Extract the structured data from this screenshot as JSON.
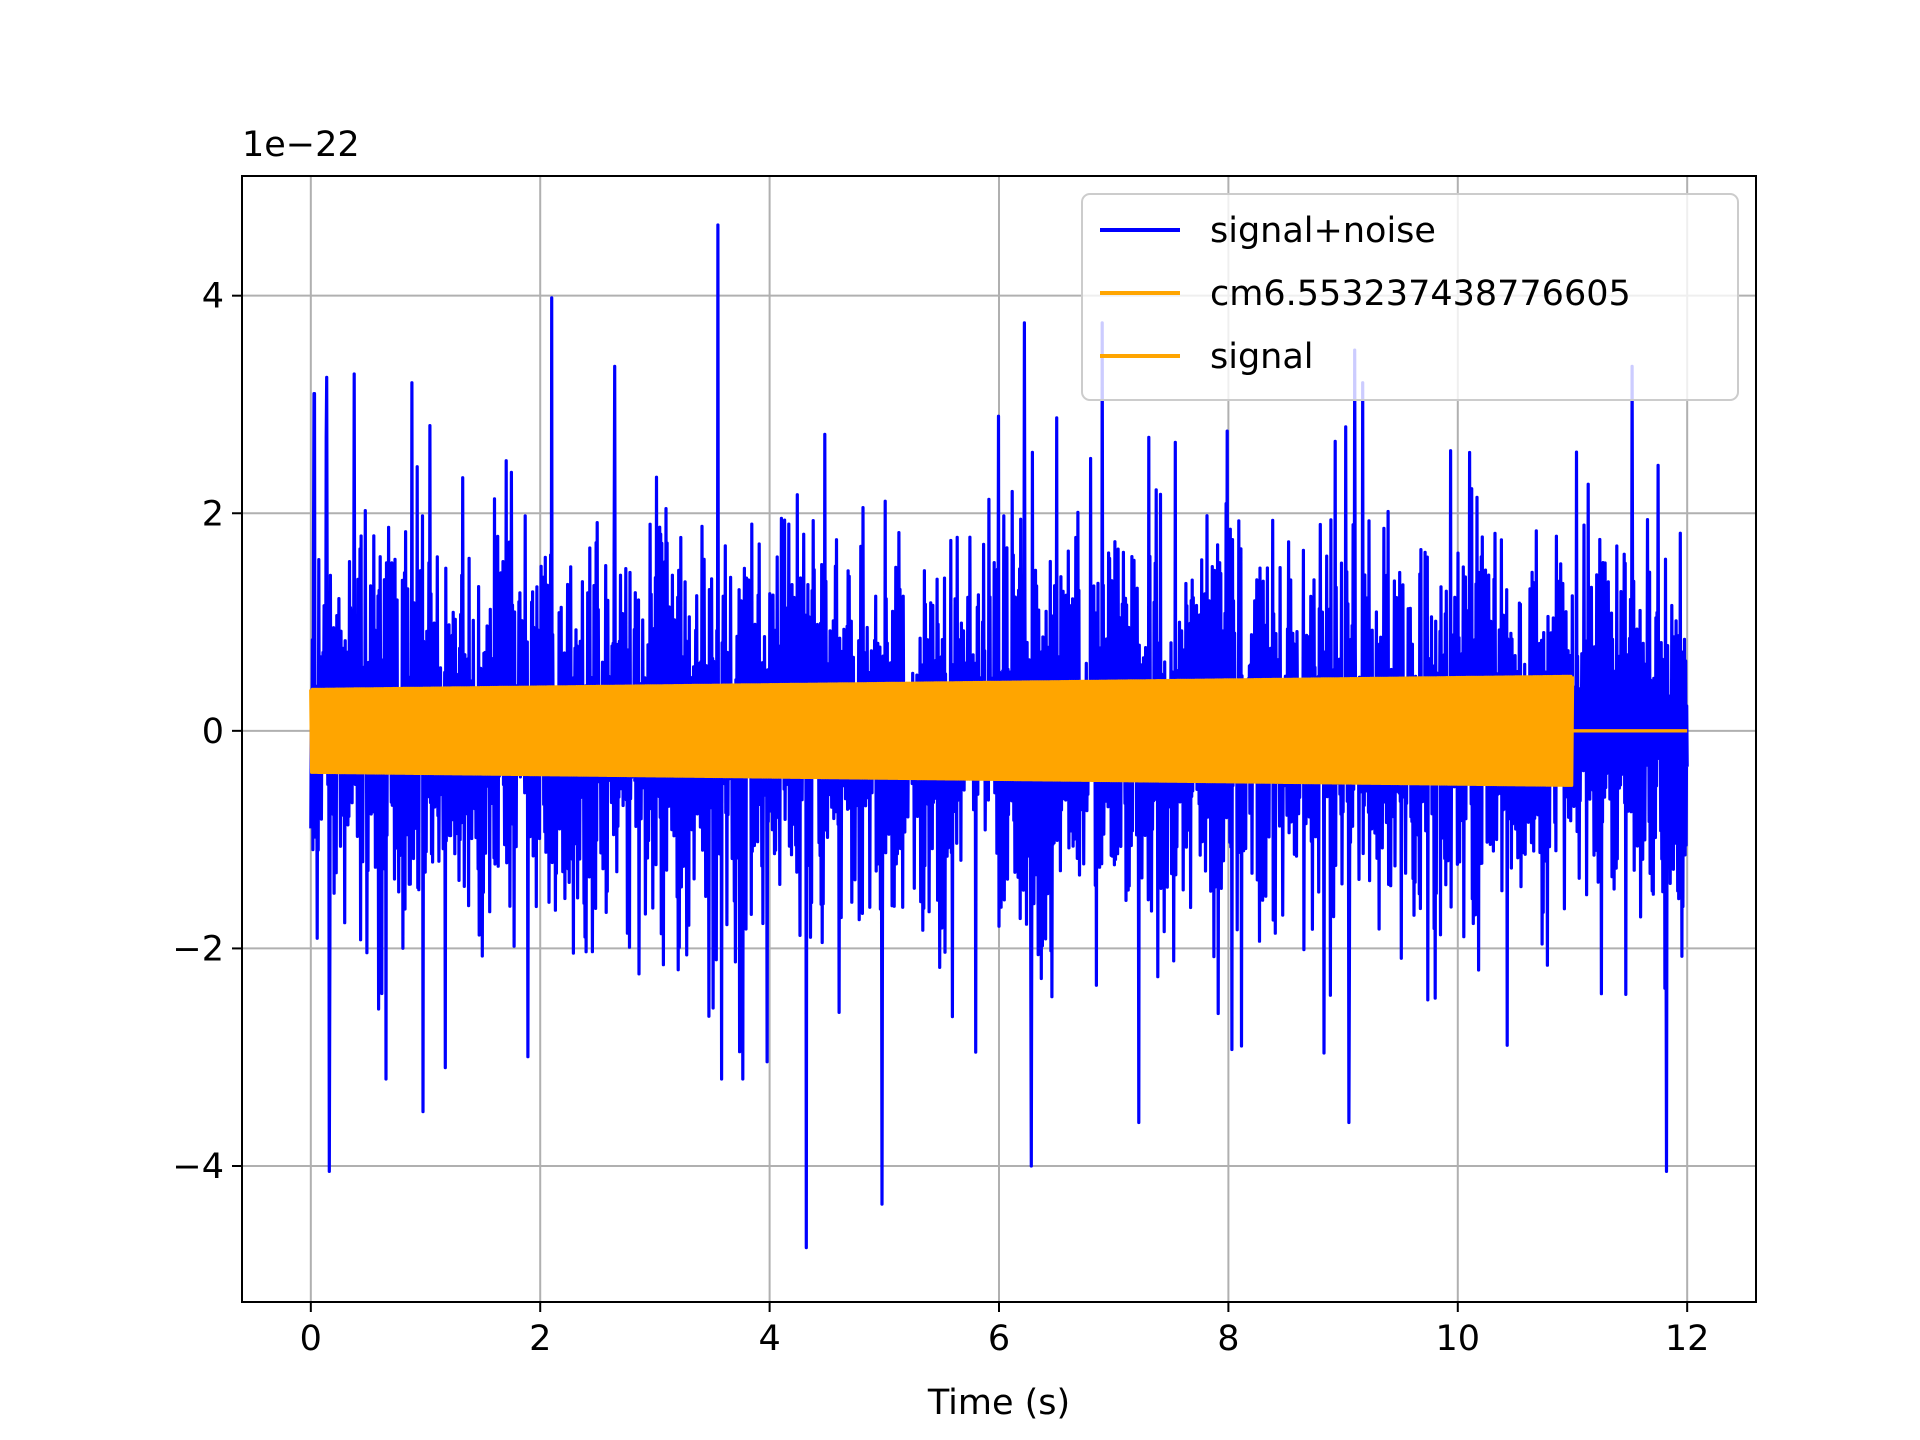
{
  "chart_data": {
    "type": "line",
    "xlabel": "Time (s)",
    "ylabel": "",
    "offset_text": "1e−22",
    "xlim": [
      -0.6,
      12.6
    ],
    "ylim": [
      -5.25,
      5.1
    ],
    "grid": true,
    "legend_position": "top-right",
    "x_ticks": [
      {
        "value": 0,
        "label": "0"
      },
      {
        "value": 2,
        "label": "2"
      },
      {
        "value": 4,
        "label": "4"
      },
      {
        "value": 6,
        "label": "6"
      },
      {
        "value": 8,
        "label": "8"
      },
      {
        "value": 10,
        "label": "10"
      },
      {
        "value": 12,
        "label": "12"
      }
    ],
    "y_ticks": [
      {
        "value": -4,
        "label": "−4"
      },
      {
        "value": -2,
        "label": "−2"
      },
      {
        "value": 0,
        "label": "0"
      },
      {
        "value": 2,
        "label": "2"
      },
      {
        "value": 4,
        "label": "4"
      }
    ],
    "series": [
      {
        "name": "signal+noise",
        "color": "#0000ff",
        "kind": "noise",
        "x_range": [
          0,
          12
        ],
        "typical_amplitude": 1.55,
        "peaks": [
          {
            "x": 0.03,
            "y": 3.1
          },
          {
            "x": 0.14,
            "y": 3.25
          },
          {
            "x": 0.16,
            "y": -4.05
          },
          {
            "x": 0.38,
            "y": 3.28
          },
          {
            "x": 0.88,
            "y": 3.2
          },
          {
            "x": 0.98,
            "y": -3.5
          },
          {
            "x": 2.1,
            "y": 3.98
          },
          {
            "x": 2.65,
            "y": 3.35
          },
          {
            "x": 3.55,
            "y": 4.65
          },
          {
            "x": 4.32,
            "y": -4.75
          },
          {
            "x": 4.98,
            "y": -4.35
          },
          {
            "x": 6.22,
            "y": 3.75
          },
          {
            "x": 6.28,
            "y": -4.0
          },
          {
            "x": 6.9,
            "y": 3.75
          },
          {
            "x": 7.22,
            "y": -3.6
          },
          {
            "x": 9.1,
            "y": 3.5
          },
          {
            "x": 9.05,
            "y": -3.6
          },
          {
            "x": 11.52,
            "y": 3.35
          },
          {
            "x": 11.82,
            "y": -4.05
          }
        ]
      },
      {
        "name": "cm6.553237438776605",
        "color": "#ffa500",
        "kind": "chirp",
        "x_range": [
          0,
          11.0
        ],
        "amplitude_start": 0.38,
        "amplitude_end": 0.5
      },
      {
        "name": "signal",
        "color": "#ffa500",
        "kind": "flat",
        "x_range": [
          11.0,
          12.0
        ],
        "value": 0
      }
    ]
  }
}
